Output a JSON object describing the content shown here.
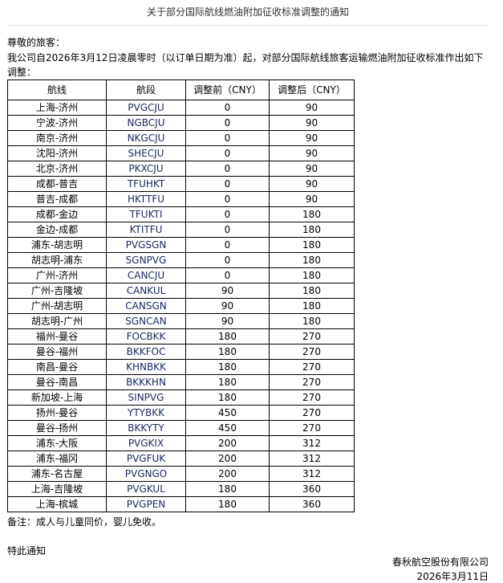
{
  "title": "关于部分国际航线燃油附加征收标准调整的通知",
  "greeting": "尊敬的旅客：",
  "intro_line1": "我公司自2026年3月12日凌晨零时（以订单日期为准）起，对部分国际航线旅客运输燃油附加征收标准作出如下",
  "intro_line2": "调整：",
  "table": {
    "headers": [
      "航线",
      "航段",
      "调整前（CNY）",
      "调整后（CNY）"
    ],
    "rows": [
      [
        "上海-济州",
        "PVGCJU",
        "0",
        "90"
      ],
      [
        "宁波-济州",
        "NGBCJU",
        "0",
        "90"
      ],
      [
        "南京-济州",
        "NKGCJU",
        "0",
        "90"
      ],
      [
        "沈阳-济州",
        "SHECJU",
        "0",
        "90"
      ],
      [
        "北京-济州",
        "PKXCJU",
        "0",
        "90"
      ],
      [
        "成都-普吉",
        "TFUHKT",
        "0",
        "90"
      ],
      [
        "普吉-成都",
        "HKTTFU",
        "0",
        "90"
      ],
      [
        "成都-金边",
        "TFUKTI",
        "0",
        "180"
      ],
      [
        "金边-成都",
        "KTITFU",
        "0",
        "180"
      ],
      [
        "浦东-胡志明",
        "PVGSGN",
        "0",
        "180"
      ],
      [
        "胡志明-浦东",
        "SGNPVG",
        "0",
        "180"
      ],
      [
        "广州-济州",
        "CANCJU",
        "0",
        "180"
      ],
      [
        "广州-吉隆坡",
        "CANKUL",
        "90",
        "180"
      ],
      [
        "广州-胡志明",
        "CANSGN",
        "90",
        "180"
      ],
      [
        "胡志明-广州",
        "SGNCAN",
        "90",
        "180"
      ],
      [
        "福州-曼谷",
        "FOCBKK",
        "180",
        "270"
      ],
      [
        "曼谷-福州",
        "BKKFOC",
        "180",
        "270"
      ],
      [
        "南昌-曼谷",
        "KHNBKK",
        "180",
        "270"
      ],
      [
        "曼谷-南昌",
        "BKKKHN",
        "180",
        "270"
      ],
      [
        "新加坡-上海",
        "SINPVG",
        "180",
        "270"
      ],
      [
        "扬州-曼谷",
        "YTYBKK",
        "450",
        "270"
      ],
      [
        "曼谷-扬州",
        "BKKYTY",
        "450",
        "270"
      ],
      [
        "浦东-大阪",
        "PVGKIX",
        "200",
        "312"
      ],
      [
        "浦东-福冈",
        "PVGFUK",
        "200",
        "312"
      ],
      [
        "浦东-名古屋",
        "PVGNGO",
        "200",
        "312"
      ],
      [
        "上海-吉隆坡",
        "PVGKUL",
        "180",
        "360"
      ],
      [
        "上海-槟城",
        "PVGPEN",
        "180",
        "360"
      ]
    ]
  },
  "note": "备注：成人与儿童同价，婴儿免收。",
  "closing": "特此通知",
  "company": "春秋航空股份有限公司",
  "date": "2026年3月11日"
}
